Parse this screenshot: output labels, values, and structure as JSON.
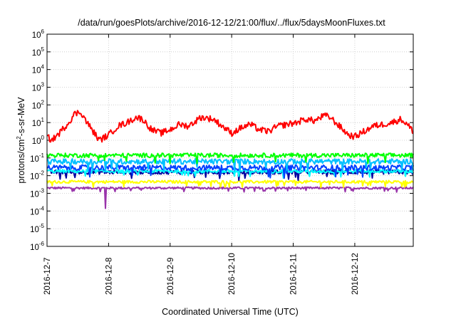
{
  "chart_data": {
    "type": "line",
    "title": "/data/run/goesPlots/archive/2016-12-12/21:00/flux/../flux/5daysMoonFluxes.txt",
    "xlabel": "Coordinated Universal Time (UTC)",
    "ylabel": {
      "prefix": "protons/cm",
      "exp": "2",
      "suffix": "-s-sr-MeV"
    },
    "x_ticks": [
      "2016-12-7",
      "2016-12-8",
      "2016-12-9",
      "2016-12-10",
      "2016-12-11",
      "2016-12-12"
    ],
    "xlim_days": [
      0,
      6
    ],
    "yscale": "log",
    "ylim": [
      1e-06,
      1000000.0
    ],
    "y_ticks": [
      {
        "base": "10",
        "exp": "-6"
      },
      {
        "base": "10",
        "exp": "-5"
      },
      {
        "base": "10",
        "exp": "-4"
      },
      {
        "base": "10",
        "exp": "-3"
      },
      {
        "base": "10",
        "exp": "-2"
      },
      {
        "base": "10",
        "exp": "-1"
      },
      {
        "base": "10",
        "exp": "0"
      },
      {
        "base": "10",
        "exp": "1"
      },
      {
        "base": "10",
        "exp": "2"
      },
      {
        "base": "10",
        "exp": "3"
      },
      {
        "base": "10",
        "exp": "4"
      },
      {
        "base": "10",
        "exp": "5"
      },
      {
        "base": "10",
        "exp": "6"
      }
    ],
    "grid": true,
    "series": [
      {
        "color": "#ff0000",
        "baseline_log": 0.6,
        "amplitude_log": 0.9,
        "noise_log": 0.18,
        "anchors_log": [
          [
            0.0,
            0.2
          ],
          [
            0.08,
            0.0
          ],
          [
            0.2,
            0.4
          ],
          [
            0.35,
            1.0
          ],
          [
            0.45,
            1.5
          ],
          [
            0.55,
            1.6
          ],
          [
            0.65,
            1.0
          ],
          [
            0.85,
            0.0
          ],
          [
            1.0,
            0.3
          ],
          [
            1.15,
            0.8
          ],
          [
            1.3,
            1.0
          ],
          [
            1.45,
            1.3
          ],
          [
            1.55,
            1.2
          ],
          [
            1.7,
            0.6
          ],
          [
            1.85,
            0.4
          ],
          [
            2.0,
            0.6
          ],
          [
            2.15,
            0.9
          ],
          [
            2.3,
            0.8
          ],
          [
            2.5,
            1.3
          ],
          [
            2.7,
            1.2
          ],
          [
            2.85,
            0.8
          ],
          [
            3.0,
            0.4
          ],
          [
            3.15,
            0.7
          ],
          [
            3.3,
            0.9
          ],
          [
            3.45,
            0.6
          ],
          [
            3.6,
            0.5
          ],
          [
            3.75,
            0.8
          ],
          [
            3.9,
            0.9
          ],
          [
            4.05,
            1.0
          ],
          [
            4.2,
            1.2
          ],
          [
            4.35,
            1.1
          ],
          [
            4.5,
            1.4
          ],
          [
            4.6,
            1.3
          ],
          [
            4.75,
            0.8
          ],
          [
            4.9,
            0.3
          ],
          [
            5.0,
            0.2
          ],
          [
            5.1,
            0.4
          ],
          [
            5.2,
            0.6
          ],
          [
            5.3,
            0.8
          ],
          [
            5.45,
            0.9
          ],
          [
            5.6,
            1.0
          ],
          [
            5.75,
            1.2
          ],
          [
            5.85,
            0.9
          ],
          [
            5.95,
            0.5
          ]
        ]
      },
      {
        "color": "#00ff00",
        "center_log": -0.85,
        "noise_log": 0.12
      },
      {
        "color": "#00c0ff",
        "center_log": -1.2,
        "noise_log": 0.15
      },
      {
        "color": "#0040ff",
        "center_log": -1.55,
        "noise_log": 0.15
      },
      {
        "color": "#00ffff",
        "center_log": -1.75,
        "noise_log": 0.1
      },
      {
        "color": "#0000a0",
        "center_log": -1.8,
        "noise_log": 0.12
      },
      {
        "color": "#ffff00",
        "center_log": -2.35,
        "noise_log": 0.08
      },
      {
        "color": "#9933aa",
        "center_log": -2.7,
        "noise_log": 0.06,
        "spike": {
          "day": 0.95,
          "log": -3.85
        }
      }
    ]
  }
}
